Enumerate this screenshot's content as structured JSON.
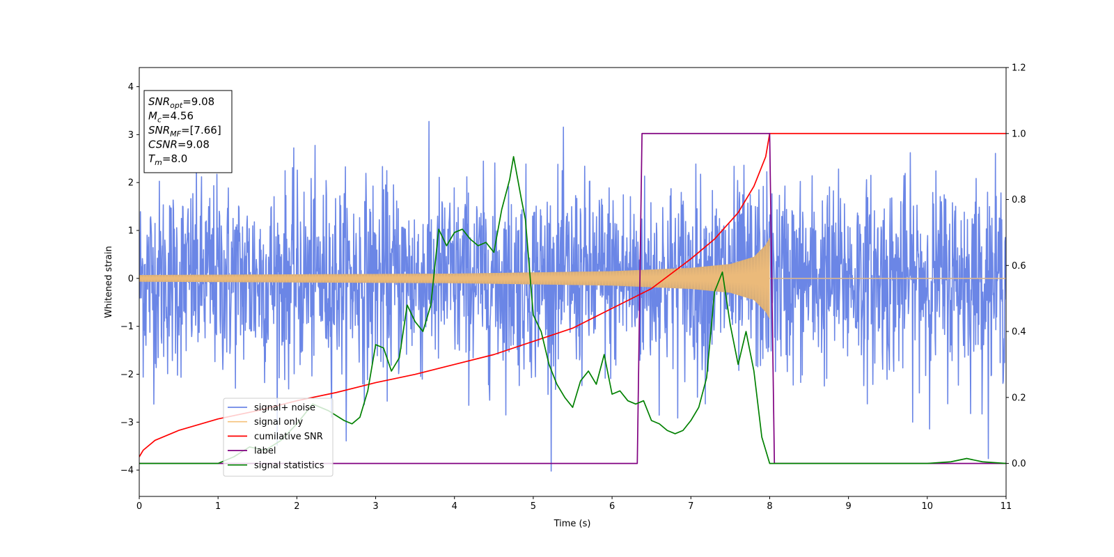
{
  "chart_data": {
    "type": "line",
    "xlabel": "Time (s)",
    "ylabel": "Whitened strain",
    "xlim": [
      0,
      11
    ],
    "ylim": [
      -4.55,
      4.4
    ],
    "y2lim": [
      -0.1,
      1.2
    ],
    "xticks": [
      0,
      1,
      2,
      3,
      4,
      5,
      6,
      7,
      8,
      9,
      10,
      11
    ],
    "yticks": [
      -4,
      -3,
      -2,
      -1,
      0,
      1,
      2,
      3,
      4
    ],
    "y2ticks": [
      0.0,
      0.2,
      0.4,
      0.6,
      0.8,
      1.0,
      1.2
    ],
    "xtick_labels": [
      "0",
      "1",
      "2",
      "3",
      "4",
      "5",
      "6",
      "7",
      "8",
      "9",
      "10",
      "11"
    ],
    "ytick_labels": [
      "−4",
      "−3",
      "−2",
      "−1",
      "0",
      "1",
      "2",
      "3",
      "4"
    ],
    "y2tick_labels": [
      "0.0",
      "0.2",
      "0.4",
      "0.6",
      "0.8",
      "1.0",
      "1.2"
    ],
    "grid": false,
    "legend_position": "lower-left",
    "series": [
      {
        "name": "signal+ noise",
        "axis": "left",
        "color": "#6b86e6",
        "kind": "noise",
        "std": 1.0,
        "x_range": [
          0,
          11
        ],
        "samples": 2200
      },
      {
        "name": "signal only",
        "axis": "left",
        "color": "#f5c07a",
        "kind": "chirp",
        "merger_time": 8.0,
        "envelope": [
          [
            0,
            0.07
          ],
          [
            4,
            0.1
          ],
          [
            6,
            0.15
          ],
          [
            7,
            0.22
          ],
          [
            7.5,
            0.3
          ],
          [
            7.8,
            0.45
          ],
          [
            7.95,
            0.7
          ],
          [
            8.0,
            0.85
          ]
        ]
      },
      {
        "name": "cumilative SNR",
        "axis": "right",
        "color": "#ff0000",
        "x": [
          0,
          0.05,
          0.2,
          0.5,
          1,
          1.5,
          2,
          2.5,
          3,
          3.5,
          4,
          4.5,
          5,
          5.5,
          6,
          6.5,
          7,
          7.3,
          7.6,
          7.8,
          7.95,
          8.0,
          8.01,
          11
        ],
        "y": [
          0.02,
          0.04,
          0.07,
          0.1,
          0.135,
          0.16,
          0.19,
          0.215,
          0.245,
          0.27,
          0.3,
          0.33,
          0.37,
          0.41,
          0.47,
          0.53,
          0.62,
          0.68,
          0.76,
          0.84,
          0.93,
          1.0,
          1.0,
          1.0
        ]
      },
      {
        "name": "label",
        "axis": "right",
        "color": "#800080",
        "x": [
          0,
          6.32,
          6.38,
          8.0,
          8.06,
          11
        ],
        "y": [
          0,
          0,
          1,
          1,
          0,
          0
        ]
      },
      {
        "name": "signal statistics",
        "axis": "right",
        "color": "#008000",
        "x": [
          0,
          0.5,
          1,
          1.2,
          1.4,
          1.6,
          1.8,
          2.0,
          2.2,
          2.4,
          2.6,
          2.7,
          2.8,
          2.9,
          3.0,
          3.1,
          3.2,
          3.3,
          3.4,
          3.5,
          3.6,
          3.7,
          3.8,
          3.9,
          4.0,
          4.1,
          4.2,
          4.3,
          4.4,
          4.5,
          4.6,
          4.7,
          4.75,
          4.85,
          4.9,
          5.0,
          5.1,
          5.2,
          5.3,
          5.4,
          5.5,
          5.6,
          5.7,
          5.8,
          5.9,
          6.0,
          6.1,
          6.2,
          6.3,
          6.4,
          6.5,
          6.6,
          6.7,
          6.8,
          6.9,
          7.0,
          7.1,
          7.2,
          7.3,
          7.4,
          7.5,
          7.6,
          7.7,
          7.8,
          7.9,
          8.0,
          8.1,
          8.5,
          9,
          9.5,
          10,
          10.3,
          10.5,
          10.7,
          11
        ],
        "y": [
          0.0,
          0.0,
          0.0,
          0.02,
          0.05,
          0.04,
          0.07,
          0.12,
          0.18,
          0.16,
          0.13,
          0.12,
          0.14,
          0.22,
          0.36,
          0.35,
          0.28,
          0.32,
          0.48,
          0.43,
          0.4,
          0.48,
          0.71,
          0.66,
          0.7,
          0.71,
          0.68,
          0.66,
          0.67,
          0.64,
          0.77,
          0.86,
          0.93,
          0.8,
          0.74,
          0.45,
          0.4,
          0.3,
          0.24,
          0.2,
          0.17,
          0.25,
          0.28,
          0.24,
          0.33,
          0.21,
          0.22,
          0.19,
          0.18,
          0.19,
          0.13,
          0.12,
          0.1,
          0.09,
          0.1,
          0.13,
          0.17,
          0.26,
          0.52,
          0.58,
          0.42,
          0.3,
          0.4,
          0.28,
          0.08,
          0.0,
          0.0,
          0.0,
          0.0,
          0.0,
          0.0,
          0.005,
          0.015,
          0.005,
          0.0
        ]
      }
    ],
    "annotation_box": {
      "lines": [
        {
          "main": "SNR",
          "sub": "opt",
          "value": "=9.08"
        },
        {
          "main": "M",
          "sub": "c",
          "value": "=4.56"
        },
        {
          "main": "SNR",
          "sub": "MF",
          "value": "=[7.66]"
        },
        {
          "main": "CSNR",
          "sub": "",
          "value": "=9.08"
        },
        {
          "main": "T",
          "sub": "m",
          "value": "=8.0"
        }
      ]
    }
  }
}
